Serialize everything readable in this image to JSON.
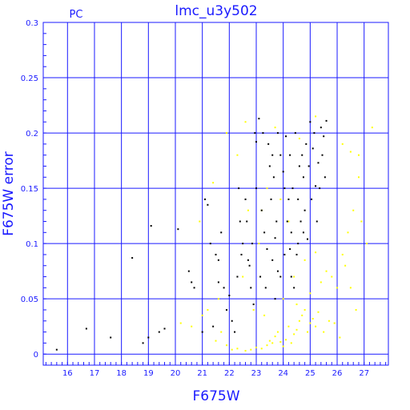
{
  "chart_data": {
    "type": "scatter",
    "title": "lmc_u3y502",
    "corner_label": "PC",
    "xlabel": "F675W",
    "ylabel": "F675W error",
    "xlim": [
      15.1,
      27.9
    ],
    "ylim": [
      -0.01,
      0.3
    ],
    "xticks": [
      16,
      17,
      18,
      19,
      20,
      21,
      22,
      23,
      24,
      25,
      26,
      27
    ],
    "yticks": [
      0,
      0.05,
      0.1,
      0.15,
      0.2,
      0.25,
      0.3
    ],
    "ytick_labels": [
      "0",
      "0.05",
      "0.1",
      "0.15",
      "0.2",
      "0.25",
      "0.3"
    ],
    "grid": true,
    "colors": {
      "axis": "#1a1aff",
      "grid": "#1a1aff",
      "black_series": "#000000",
      "yellow_series": "#ffff00"
    },
    "series": [
      {
        "color": "black",
        "points": [
          [
            15.6,
            0.004
          ],
          [
            16.7,
            0.023
          ],
          [
            17.6,
            0.015
          ],
          [
            18.4,
            0.087
          ],
          [
            18.8,
            0.01
          ],
          [
            19.0,
            0.015
          ],
          [
            19.1,
            0.116
          ],
          [
            19.4,
            0.02
          ],
          [
            19.6,
            0.023
          ],
          [
            20.1,
            0.113
          ],
          [
            20.5,
            0.075
          ],
          [
            20.6,
            0.065
          ],
          [
            20.7,
            0.06
          ],
          [
            21.0,
            0.02
          ],
          [
            21.1,
            0.14
          ],
          [
            21.2,
            0.135
          ],
          [
            21.3,
            0.1
          ],
          [
            21.4,
            0.025
          ],
          [
            21.5,
            0.09
          ],
          [
            21.6,
            0.085
          ],
          [
            21.6,
            0.065
          ],
          [
            21.7,
            0.11
          ],
          [
            21.8,
            0.06
          ],
          [
            21.9,
            0.04
          ],
          [
            22.0,
            0.053
          ],
          [
            22.1,
            0.03
          ],
          [
            22.2,
            0.02
          ],
          [
            22.3,
            0.07
          ],
          [
            22.4,
            0.12
          ],
          [
            22.5,
            0.1
          ],
          [
            22.6,
            0.14
          ],
          [
            22.7,
            0.085
          ],
          [
            22.8,
            0.06
          ],
          [
            22.9,
            0.045
          ],
          [
            23.0,
            0.15
          ],
          [
            23.0,
            0.192
          ],
          [
            23.1,
            0.213
          ],
          [
            23.2,
            0.13
          ],
          [
            23.3,
            0.11
          ],
          [
            23.4,
            0.095
          ],
          [
            23.5,
            0.17
          ],
          [
            23.6,
            0.18
          ],
          [
            23.7,
            0.05
          ],
          [
            23.8,
            0.075
          ],
          [
            23.9,
            0.07
          ],
          [
            24.0,
            0.165
          ],
          [
            24.1,
            0.197
          ],
          [
            24.2,
            0.14
          ],
          [
            24.3,
            0.11
          ],
          [
            24.4,
            0.06
          ],
          [
            24.5,
            0.09
          ],
          [
            24.6,
            0.17
          ],
          [
            24.7,
            0.18
          ],
          [
            24.8,
            0.13
          ],
          [
            24.9,
            0.104
          ],
          [
            25.0,
            0.21
          ],
          [
            25.1,
            0.186
          ],
          [
            25.2,
            0.152
          ],
          [
            25.3,
            0.173
          ],
          [
            25.4,
            0.205
          ],
          [
            25.5,
            0.197
          ],
          [
            25.6,
            0.211
          ],
          [
            24.3,
            0.07
          ],
          [
            23.7,
            0.105
          ],
          [
            22.95,
            0.2
          ],
          [
            23.25,
            0.2
          ],
          [
            23.45,
            0.19
          ],
          [
            23.65,
            0.16
          ],
          [
            23.8,
            0.2
          ],
          [
            23.9,
            0.18
          ],
          [
            24.05,
            0.15
          ],
          [
            24.15,
            0.12
          ],
          [
            24.25,
            0.18
          ],
          [
            24.35,
            0.15
          ],
          [
            24.45,
            0.2
          ],
          [
            24.55,
            0.14
          ],
          [
            24.65,
            0.12
          ],
          [
            24.75,
            0.16
          ],
          [
            24.85,
            0.19
          ],
          [
            24.95,
            0.17
          ],
          [
            25.05,
            0.14
          ],
          [
            25.15,
            0.2
          ],
          [
            25.25,
            0.12
          ],
          [
            25.35,
            0.15
          ],
          [
            25.45,
            0.18
          ],
          [
            25.55,
            0.16
          ],
          [
            23.55,
            0.14
          ],
          [
            23.75,
            0.12
          ],
          [
            22.85,
            0.1
          ],
          [
            22.65,
            0.12
          ],
          [
            22.35,
            0.15
          ],
          [
            22.45,
            0.09
          ],
          [
            22.75,
            0.08
          ],
          [
            23.15,
            0.07
          ],
          [
            23.35,
            0.06
          ],
          [
            23.6,
            0.085
          ],
          [
            24.05,
            0.09
          ],
          [
            24.25,
            0.095
          ],
          [
            24.75,
            0.11
          ],
          [
            24.55,
            0.1
          ]
        ]
      },
      {
        "color": "yellow",
        "points": [
          [
            20.2,
            0.028
          ],
          [
            20.6,
            0.025
          ],
          [
            21.0,
            0.035
          ],
          [
            21.5,
            0.012
          ],
          [
            21.7,
            0.02
          ],
          [
            21.9,
            0.008
          ],
          [
            22.1,
            0.004
          ],
          [
            22.3,
            0.005
          ],
          [
            22.6,
            0.003
          ],
          [
            22.8,
            0.004
          ],
          [
            23.0,
            0.006
          ],
          [
            23.2,
            0.005
          ],
          [
            23.4,
            0.008
          ],
          [
            23.5,
            0.012
          ],
          [
            23.6,
            0.01
          ],
          [
            23.7,
            0.016
          ],
          [
            23.8,
            0.02
          ],
          [
            23.9,
            0.011
          ],
          [
            24.0,
            0.007
          ],
          [
            24.1,
            0.013
          ],
          [
            24.2,
            0.025
          ],
          [
            24.3,
            0.01
          ],
          [
            24.4,
            0.018
          ],
          [
            24.5,
            0.022
          ],
          [
            24.6,
            0.03
          ],
          [
            24.7,
            0.035
          ],
          [
            24.8,
            0.04
          ],
          [
            24.9,
            0.02
          ],
          [
            25.0,
            0.028
          ],
          [
            25.1,
            0.032
          ],
          [
            25.2,
            0.025
          ],
          [
            25.3,
            0.038
          ],
          [
            25.5,
            0.02
          ],
          [
            25.7,
            0.03
          ],
          [
            25.9,
            0.028
          ],
          [
            26.1,
            0.015
          ],
          [
            25.0,
            0.055
          ],
          [
            25.4,
            0.065
          ],
          [
            25.6,
            0.075
          ],
          [
            25.8,
            0.07
          ],
          [
            26.0,
            0.06
          ],
          [
            26.2,
            0.09
          ],
          [
            26.3,
            0.08
          ],
          [
            26.5,
            0.06
          ],
          [
            26.7,
            0.04
          ],
          [
            26.4,
            0.11
          ],
          [
            26.6,
            0.13
          ],
          [
            26.8,
            0.16
          ],
          [
            26.9,
            0.12
          ],
          [
            27.1,
            0.1
          ],
          [
            26.2,
            0.19
          ],
          [
            26.5,
            0.183
          ],
          [
            26.8,
            0.18
          ],
          [
            27.3,
            0.205
          ],
          [
            25.2,
            0.092
          ],
          [
            24.8,
            0.085
          ],
          [
            24.4,
            0.07
          ],
          [
            24.2,
            0.12
          ],
          [
            23.9,
            0.14
          ],
          [
            23.4,
            0.15
          ],
          [
            23.1,
            0.1
          ],
          [
            22.7,
            0.13
          ],
          [
            22.3,
            0.18
          ],
          [
            21.4,
            0.155
          ],
          [
            20.9,
            0.12
          ],
          [
            21.9,
            0.2
          ],
          [
            22.6,
            0.21
          ],
          [
            23.7,
            0.205
          ],
          [
            24.6,
            0.195
          ],
          [
            25.2,
            0.215
          ],
          [
            23.2,
            0.13
          ],
          [
            22.5,
            0.07
          ],
          [
            21.6,
            0.05
          ],
          [
            21.2,
            0.04
          ],
          [
            22.9,
            0.04
          ],
          [
            23.3,
            0.035
          ],
          [
            24.0,
            0.05
          ],
          [
            24.5,
            0.045
          ]
        ]
      }
    ]
  }
}
